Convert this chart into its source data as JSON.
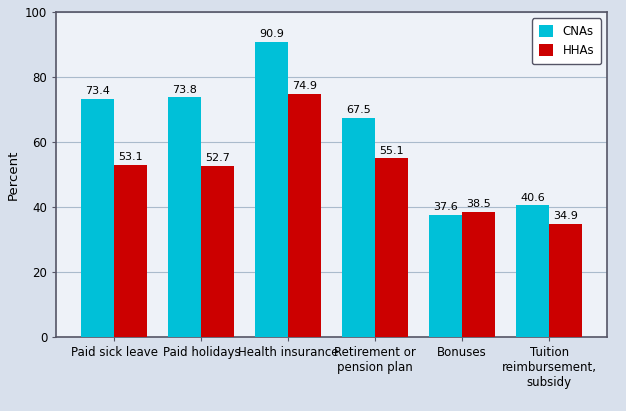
{
  "categories": [
    "Paid sick leave",
    "Paid holidays",
    "Health insurance",
    "Retirement or\npension plan",
    "Bonuses",
    "Tuition\nreimbursement,\nsubsidy"
  ],
  "cna_values": [
    73.4,
    73.8,
    90.9,
    67.5,
    37.6,
    40.6
  ],
  "hha_values": [
    53.1,
    52.7,
    74.9,
    55.1,
    38.5,
    34.9
  ],
  "cna_color": "#00C0D8",
  "hha_color": "#CC0000",
  "ylabel": "Percent",
  "ylim": [
    0,
    100
  ],
  "yticks": [
    0,
    20,
    40,
    60,
    80,
    100
  ],
  "legend_labels": [
    "CNAs",
    "HHAs"
  ],
  "figure_bg_color": "#D8E0EC",
  "plot_bg_color": "#EEF2F8",
  "bar_width": 0.38,
  "label_fontsize": 8.0,
  "tick_fontsize": 8.5,
  "ylabel_fontsize": 9.5,
  "grid_color": "#AABBCC",
  "spine_color": "#333333",
  "border_color": "#555566"
}
